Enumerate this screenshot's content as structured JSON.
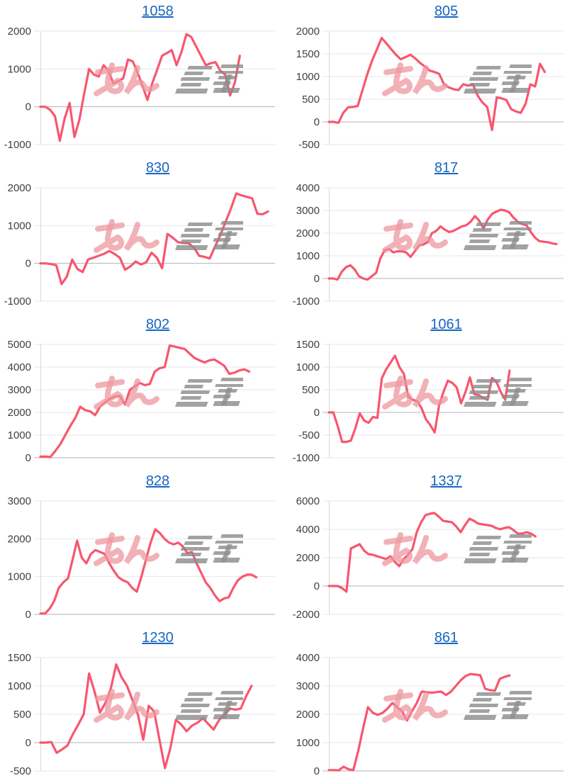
{
  "page": {
    "background": "#ffffff"
  },
  "style": {
    "line_color": "#f8566f",
    "grid_color": "#e7e7e7",
    "zero_line_color": "#b3b3b3",
    "axis_line_color": "#d9d9d9",
    "tick_label_color": "#404040",
    "title_link_color": "#1766c2",
    "watermark_pink": "#ed969d",
    "watermark_gray": "#8c8c8c"
  },
  "watermark": {
    "text": "みんレポ",
    "pink_text": "みん",
    "gray_text": "レポ"
  },
  "chart_data": [
    {
      "type": "line",
      "title": "1058",
      "xlabel": "",
      "ylabel": "",
      "grid": true,
      "legend": "none",
      "ylim": [
        -1000,
        2000
      ],
      "yticks": [
        2000,
        1000,
        0,
        -1000
      ],
      "x_span": 0.85,
      "values": [
        0,
        0,
        -80,
        -250,
        -900,
        -300,
        100,
        -800,
        -350,
        350,
        1000,
        850,
        800,
        1100,
        950,
        620,
        680,
        750,
        1250,
        1200,
        900,
        550,
        180,
        620,
        980,
        1350,
        1420,
        1500,
        1100,
        1450,
        1920,
        1850,
        1600,
        1350,
        1100,
        1150,
        1180,
        950,
        850,
        300,
        650,
        1350
      ]
    },
    {
      "type": "line",
      "title": "805",
      "xlabel": "",
      "ylabel": "",
      "grid": true,
      "legend": "none",
      "ylim": [
        -500,
        2000
      ],
      "yticks": [
        2000,
        1500,
        1000,
        500,
        0,
        -500
      ],
      "x_span": 0.92,
      "values": [
        0,
        0,
        -20,
        200,
        320,
        330,
        350,
        700,
        1050,
        1350,
        1600,
        1850,
        1730,
        1600,
        1480,
        1380,
        1430,
        1480,
        1400,
        1300,
        1220,
        1130,
        1100,
        1060,
        830,
        760,
        720,
        700,
        830,
        800,
        830,
        580,
        430,
        330,
        -180,
        540,
        520,
        480,
        280,
        230,
        200,
        400,
        830,
        780,
        1280,
        1100
      ]
    },
    {
      "type": "line",
      "title": "830",
      "xlabel": "",
      "ylabel": "",
      "grid": true,
      "legend": "none",
      "ylim": [
        -1000,
        2000
      ],
      "yticks": [
        2000,
        1000,
        0,
        -1000
      ],
      "x_span": 0.97,
      "values": [
        0,
        0,
        -20,
        -50,
        -550,
        -350,
        100,
        -150,
        -230,
        100,
        150,
        200,
        250,
        330,
        250,
        150,
        -170,
        -80,
        50,
        -30,
        30,
        280,
        150,
        -130,
        780,
        680,
        560,
        540,
        530,
        420,
        200,
        170,
        130,
        450,
        750,
        1100,
        1450,
        1850,
        1800,
        1760,
        1720,
        1310,
        1300,
        1370
      ]
    },
    {
      "type": "line",
      "title": "817",
      "xlabel": "",
      "ylabel": "",
      "grid": true,
      "legend": "none",
      "ylim": [
        -1000,
        4000
      ],
      "yticks": [
        4000,
        3000,
        2000,
        1000,
        0,
        -1000
      ],
      "x_span": 0.97,
      "values": [
        0,
        0,
        -50,
        300,
        500,
        580,
        400,
        100,
        0,
        -50,
        100,
        250,
        900,
        1250,
        1300,
        1150,
        1200,
        1200,
        1150,
        950,
        1200,
        1450,
        1500,
        1600,
        2000,
        2100,
        2300,
        2150,
        2050,
        2100,
        2200,
        2300,
        2350,
        2500,
        2750,
        2550,
        2200,
        2600,
        2850,
        2950,
        3030,
        3000,
        2920,
        2680,
        2500,
        2400,
        2350,
        2050,
        1800,
        1650,
        1620,
        1600,
        1550,
        1520
      ]
    },
    {
      "type": "line",
      "title": "802",
      "xlabel": "",
      "ylabel": "",
      "grid": true,
      "legend": "none",
      "ylim": [
        0,
        5000
      ],
      "yticks": [
        5000,
        4000,
        3000,
        2000,
        1000,
        0
      ],
      "x_span": 0.89,
      "values": [
        50,
        50,
        30,
        300,
        600,
        1000,
        1400,
        1750,
        2250,
        2100,
        2050,
        1880,
        2250,
        2450,
        2600,
        2700,
        2720,
        2350,
        3000,
        3150,
        3300,
        3200,
        3250,
        3800,
        3950,
        4000,
        4950,
        4900,
        4850,
        4800,
        4600,
        4400,
        4300,
        4200,
        4300,
        4330,
        4200,
        4050,
        3700,
        3750,
        3850,
        3900,
        3800
      ]
    },
    {
      "type": "line",
      "title": "1061",
      "xlabel": "",
      "ylabel": "",
      "grid": true,
      "legend": "none",
      "ylim": [
        -1000,
        1500
      ],
      "yticks": [
        1500,
        1000,
        500,
        0,
        -500,
        -1000
      ],
      "x_span": 0.77,
      "values": [
        0,
        0,
        -300,
        -650,
        -650,
        -620,
        -350,
        -20,
        -180,
        -230,
        -100,
        -120,
        750,
        950,
        1100,
        1250,
        1000,
        850,
        350,
        280,
        250,
        100,
        -150,
        -280,
        -440,
        150,
        450,
        700,
        650,
        550,
        200,
        450,
        770,
        400,
        380,
        320,
        280,
        760,
        680,
        450,
        280,
        920
      ]
    },
    {
      "type": "line",
      "title": "828",
      "xlabel": "",
      "ylabel": "",
      "grid": true,
      "legend": "none",
      "ylim": [
        0,
        3000
      ],
      "yticks": [
        3000,
        2000,
        1000,
        0
      ],
      "x_span": 0.92,
      "values": [
        20,
        20,
        150,
        350,
        700,
        850,
        950,
        1450,
        1950,
        1500,
        1350,
        1600,
        1700,
        1650,
        1600,
        1350,
        1150,
        980,
        900,
        850,
        700,
        600,
        1000,
        1450,
        1900,
        2250,
        2150,
        2000,
        1900,
        1850,
        1900,
        1800,
        1620,
        1650,
        1350,
        1100,
        850,
        700,
        500,
        350,
        420,
        450,
        700,
        900,
        1000,
        1050,
        1050,
        980
      ]
    },
    {
      "type": "line",
      "title": "1337",
      "xlabel": "",
      "ylabel": "",
      "grid": true,
      "legend": "none",
      "ylim": [
        -2000,
        6000
      ],
      "yticks": [
        6000,
        4000,
        2000,
        0,
        -2000
      ],
      "x_span": 0.88,
      "values": [
        0,
        0,
        0,
        -150,
        -400,
        2650,
        2800,
        2950,
        2500,
        2250,
        2200,
        2100,
        2000,
        1900,
        2100,
        1700,
        1400,
        1900,
        2200,
        2600,
        3800,
        4500,
        5000,
        5100,
        5150,
        4900,
        4600,
        4550,
        4500,
        4200,
        3800,
        4300,
        4750,
        4600,
        4400,
        4350,
        4300,
        4250,
        4100,
        4000,
        4100,
        4150,
        3950,
        3700,
        3700,
        3800,
        3700,
        3500
      ]
    },
    {
      "type": "line",
      "title": "1230",
      "xlabel": "",
      "ylabel": "",
      "grid": true,
      "legend": "none",
      "ylim": [
        -500,
        1500
      ],
      "yticks": [
        1500,
        1000,
        500,
        0,
        -500
      ],
      "x_span": 0.9,
      "values": [
        0,
        0,
        10,
        -180,
        -120,
        -50,
        150,
        320,
        500,
        1220,
        900,
        530,
        700,
        950,
        1380,
        1150,
        1000,
        750,
        500,
        50,
        650,
        550,
        50,
        -450,
        -100,
        400,
        320,
        200,
        300,
        350,
        430,
        330,
        230,
        400,
        500,
        600,
        580,
        600,
        820,
        1000
      ]
    },
    {
      "type": "line",
      "title": "861",
      "xlabel": "",
      "ylabel": "",
      "grid": true,
      "legend": "none",
      "ylim": [
        0,
        4000
      ],
      "yticks": [
        4000,
        3000,
        2000,
        1000,
        0
      ],
      "x_span": 0.77,
      "values": [
        30,
        30,
        20,
        150,
        60,
        30,
        700,
        1500,
        2250,
        2050,
        1980,
        2050,
        2200,
        2400,
        2250,
        2100,
        1780,
        2100,
        2400,
        2800,
        2780,
        2760,
        2780,
        2800,
        2680,
        2800,
        3000,
        3200,
        3350,
        3420,
        3400,
        3380,
        2900,
        2850,
        2830,
        3250,
        3320,
        3370
      ]
    }
  ]
}
